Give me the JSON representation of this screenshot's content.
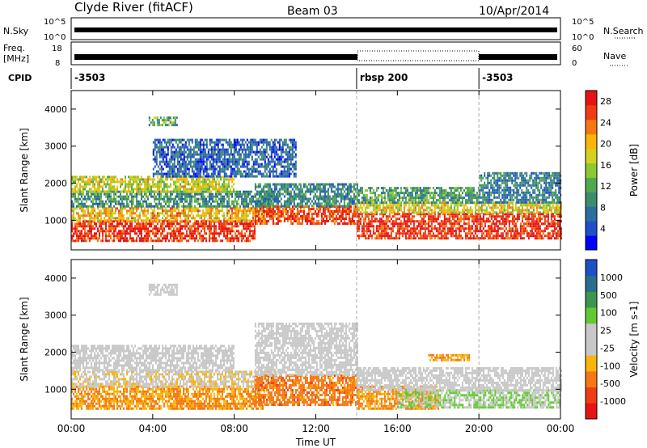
{
  "header": {
    "station": "Clyde River (fitACF)",
    "beam": "Beam 03",
    "date": "10/Apr/2014"
  },
  "strip_labels": {
    "nsky": "N.Sky",
    "nsearch": "N.Search",
    "freq_top": "Freq.",
    "freq_unit": "[MHz]",
    "nave": "Nave",
    "cpid": "CPID"
  },
  "noise_ticks": {
    "left_top": "10^5",
    "left_bot": "10^0",
    "right_top": "10^5",
    "right_bot": "10^0"
  },
  "freq_ticks": {
    "left_top": "18",
    "left_bot": "8",
    "right_top": "60",
    "right_bot": "0"
  },
  "cpid_segments": [
    {
      "label": "-3503",
      "start": 0,
      "end": 14
    },
    {
      "label": "rbsp 200",
      "start": 14,
      "end": 20
    },
    {
      "label": "-3503",
      "start": 20,
      "end": 24
    }
  ],
  "chart_data": [
    {
      "type": "heatmap",
      "name": "power",
      "ylabel": "Slant Range [km]",
      "xlabel": "",
      "xlim": [
        0,
        24
      ],
      "ylim": [
        200,
        4500
      ],
      "yticks": [
        "1000",
        "2000",
        "3000",
        "4000"
      ],
      "colorbar": {
        "label": "Power [dB]",
        "ticks": [
          "4",
          "8",
          "12",
          "16",
          "20",
          "24",
          "28"
        ],
        "range": [
          0,
          30
        ],
        "colors": [
          "#0000ff",
          "#2050c8",
          "#2a6ea0",
          "#3c8c6e",
          "#52a850",
          "#8cc832",
          "#d2d21e",
          "#fab40a",
          "#f57814",
          "#f03c14",
          "#e61414"
        ]
      },
      "bands": [
        {
          "t0": 0.0,
          "t1": 9.0,
          "r0": 450,
          "r1": 1000,
          "level": 27
        },
        {
          "t0": 0.0,
          "t1": 9.5,
          "r0": 1000,
          "r1": 1350,
          "level": 20
        },
        {
          "t0": 0.0,
          "t1": 10.0,
          "r0": 1350,
          "r1": 1800,
          "level": 10
        },
        {
          "t0": 0.0,
          "t1": 8.0,
          "r0": 1800,
          "r1": 2200,
          "level": 17
        },
        {
          "t0": 4.0,
          "t1": 11.0,
          "r0": 2200,
          "r1": 3200,
          "level": 6
        },
        {
          "t0": 3.8,
          "t1": 5.2,
          "r0": 3550,
          "r1": 3800,
          "level": 12
        },
        {
          "t0": 9.0,
          "t1": 14.0,
          "r0": 900,
          "r1": 1400,
          "level": 26
        },
        {
          "t0": 9.0,
          "t1": 14.0,
          "r0": 1400,
          "r1": 2000,
          "level": 9
        },
        {
          "t0": 14.0,
          "t1": 24.0,
          "r0": 500,
          "r1": 1200,
          "level": 27
        },
        {
          "t0": 14.0,
          "t1": 24.0,
          "r0": 1200,
          "r1": 1500,
          "level": 18
        },
        {
          "t0": 14.0,
          "t1": 20.0,
          "r0": 1500,
          "r1": 1900,
          "level": 11
        },
        {
          "t0": 20.0,
          "t1": 24.0,
          "r0": 1500,
          "r1": 2300,
          "level": 8
        }
      ]
    },
    {
      "type": "heatmap",
      "name": "velocity",
      "ylabel": "Slant Range [km]",
      "xlabel": "Time UT",
      "xlim": [
        0,
        24
      ],
      "ylim": [
        200,
        4500
      ],
      "xticks": [
        "00:00",
        "04:00",
        "08:00",
        "12:00",
        "16:00",
        "20:00",
        "00:00"
      ],
      "yticks": [
        "1000",
        "2000",
        "3000",
        "4000"
      ],
      "colorbar": {
        "label": "Velocity [m s-1]",
        "ticks": [
          "1000",
          "500",
          "100",
          "25",
          "-25",
          "-100",
          "-500",
          "-1000"
        ],
        "range": [
          -1000,
          1000
        ],
        "colors": [
          "#e61414",
          "#f03c14",
          "#f57814",
          "#fab40a",
          "#c8c8c8",
          "#c8c8c8",
          "#64c832",
          "#3c9650",
          "#2a6e8c",
          "#2050c8"
        ]
      },
      "bands": [
        {
          "t0": 0.0,
          "t1": 9.5,
          "r0": 500,
          "r1": 1100,
          "level": -400
        },
        {
          "t0": 0.0,
          "t1": 10.0,
          "r0": 1100,
          "r1": 1500,
          "level": -150
        },
        {
          "t0": 0.0,
          "t1": 8.0,
          "r0": 1500,
          "r1": 2200,
          "level": 0
        },
        {
          "t0": 3.8,
          "t1": 5.2,
          "r0": 3550,
          "r1": 3850,
          "level": 0
        },
        {
          "t0": 9.0,
          "t1": 14.0,
          "r0": 600,
          "r1": 1400,
          "level": -500
        },
        {
          "t0": 9.0,
          "t1": 14.0,
          "r0": 1400,
          "r1": 2800,
          "level": 0
        },
        {
          "t0": 14.0,
          "t1": 18.0,
          "r0": 500,
          "r1": 1100,
          "level": -400
        },
        {
          "t0": 16.0,
          "t1": 24.0,
          "r0": 500,
          "r1": 1000,
          "level": 200
        },
        {
          "t0": 14.0,
          "t1": 24.0,
          "r0": 1000,
          "r1": 1600,
          "level": 0
        },
        {
          "t0": 17.5,
          "t1": 19.5,
          "r0": 1800,
          "r1": 1950,
          "level": -400
        }
      ]
    }
  ]
}
